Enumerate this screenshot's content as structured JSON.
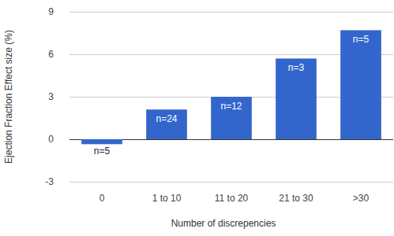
{
  "chart_data": {
    "type": "bar",
    "x_label": "Number of discrepencies",
    "y_label": "Ejection Fraction Effect size (%)",
    "categories": [
      "0",
      "1 to 10",
      "11 to 20",
      "21 to 30",
      ">30"
    ],
    "values": [
      -0.35,
      2.1,
      3.0,
      5.7,
      7.7
    ],
    "annotations": [
      "n=5",
      "n=24",
      "n=12",
      "n=3",
      "n=5"
    ],
    "color": "#3366cc",
    "ylim": [
      -3,
      9
    ],
    "yticks": [
      -3,
      0,
      3,
      6,
      9
    ],
    "grid": true
  }
}
